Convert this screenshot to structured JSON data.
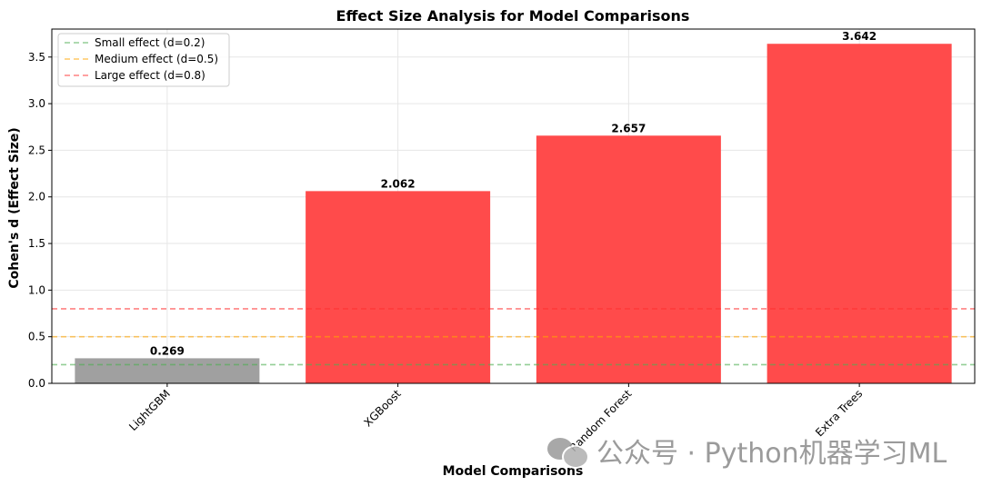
{
  "chart_data": {
    "type": "bar",
    "title": "Effect Size Analysis for Model Comparisons",
    "xlabel": "Model Comparisons",
    "ylabel": "Cohen's d (Effect Size)",
    "categories": [
      "LightGBM",
      "XGBoost",
      "Random Forest",
      "Extra Trees"
    ],
    "values": [
      0.269,
      2.062,
      2.657,
      3.642
    ],
    "value_labels": [
      "0.269",
      "2.062",
      "2.657",
      "3.642"
    ],
    "bar_colors": [
      "#a0a0a0",
      "#ff4b4b",
      "#ff4b4b",
      "#ff4b4b"
    ],
    "ylim": [
      0,
      3.8
    ],
    "yticks": [
      0.0,
      0.5,
      1.0,
      1.5,
      2.0,
      2.5,
      3.0,
      3.5
    ],
    "ytick_labels": [
      "0.0",
      "0.5",
      "1.0",
      "1.5",
      "2.0",
      "2.5",
      "3.0",
      "3.5"
    ],
    "grid": true,
    "legend_position": "top-left",
    "reference_lines": [
      {
        "label": "Small effect (d=0.2)",
        "value": 0.2,
        "color": "#4caf50"
      },
      {
        "label": "Medium effect (d=0.5)",
        "value": 0.5,
        "color": "#ffa500"
      },
      {
        "label": "Large effect (d=0.8)",
        "value": 0.8,
        "color": "#ff3030"
      }
    ]
  },
  "watermark": {
    "text": "公众号 · Python机器学习ML",
    "icon": "wechat-icon"
  }
}
